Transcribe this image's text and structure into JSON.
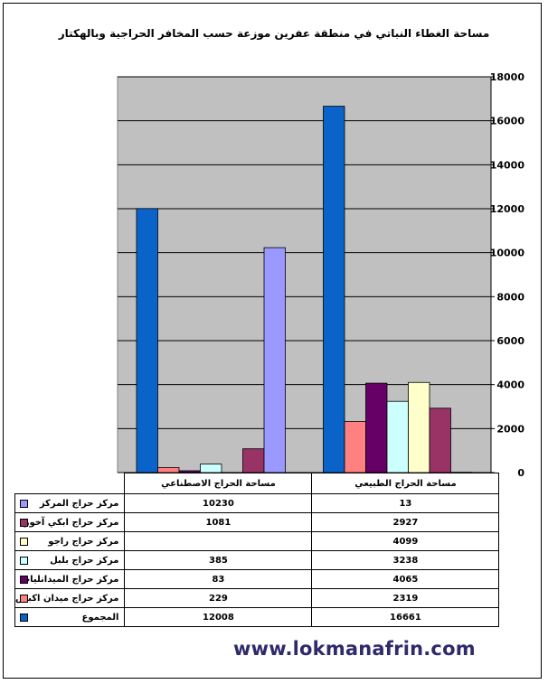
{
  "chart_data": {
    "type": "bar",
    "title": "مساحة الغطاء النباتي في منطقة عفرين موزعة حسب المخافر الحراجية وبالهكتار",
    "categories": [
      "مساحة الحراج الاصطناعي",
      "مساحة الحراج الطبيعي"
    ],
    "y_ticks": [
      "0",
      "2000",
      "4000",
      "6000",
      "8000",
      "10000",
      "12000",
      "14000",
      "16000",
      "18000"
    ],
    "ylim": [
      0,
      18000
    ],
    "grid": true,
    "plot_background": "#c0c0c0",
    "legend_placement": "table-left",
    "series": [
      {
        "name": "المجموع",
        "color": "#0a63c9",
        "values": [
          12008,
          16661
        ],
        "labels": [
          "12008",
          "16661"
        ]
      },
      {
        "name": "مركز حراج ميدان اكبس",
        "color": "#ff8080",
        "values": [
          229,
          2319
        ],
        "labels": [
          "229",
          "2319"
        ]
      },
      {
        "name": "مركز حراج الميدانليات",
        "color": "#660066",
        "values": [
          83,
          4065
        ],
        "labels": [
          "83",
          "4065"
        ]
      },
      {
        "name": "مركز حراج بلبل",
        "color": "#ccffff",
        "values": [
          385,
          3238
        ],
        "labels": [
          "385",
          "3238"
        ]
      },
      {
        "name": "مركز حراج راجو",
        "color": "#ffffcc",
        "values": [
          0,
          4099
        ],
        "labels": [
          "",
          "4099"
        ]
      },
      {
        "name": "مركز حراج ابكي آخور",
        "color": "#993366",
        "values": [
          1081,
          2927
        ],
        "labels": [
          "1081",
          "2927"
        ]
      },
      {
        "name": "مركز حراج المركز",
        "color": "#9999ff",
        "values": [
          10230,
          13
        ],
        "labels": [
          "10230",
          "13"
        ]
      }
    ]
  },
  "watermark": "www.lokmanafrin.com"
}
